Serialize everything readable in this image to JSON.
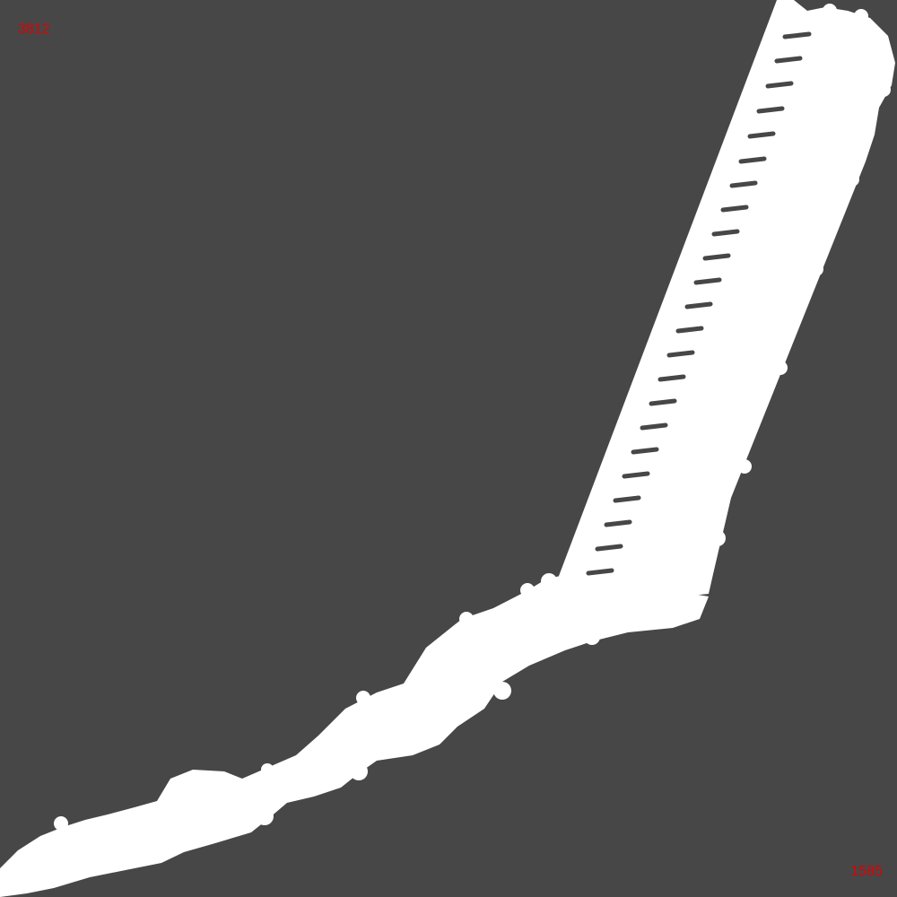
{
  "labels": {
    "top_left": "3812",
    "bottom_right": "1585"
  },
  "colors": {
    "background": "#474747",
    "trace": "#ffffff",
    "label": "#e00000"
  }
}
